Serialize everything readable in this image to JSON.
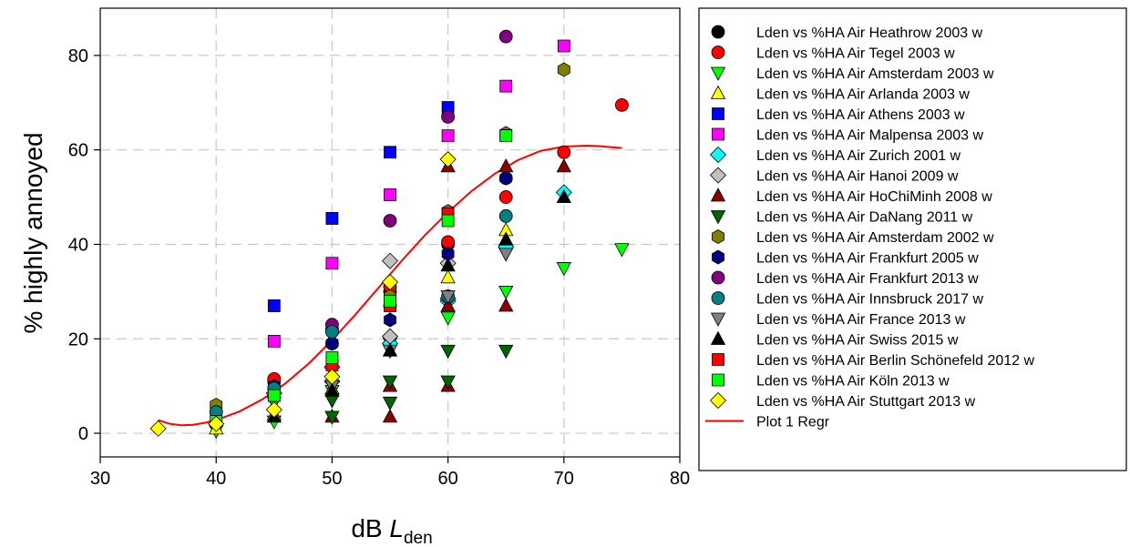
{
  "chart_data": {
    "type": "scatter",
    "ylabel": "% highly annoyed",
    "xlabel_prefix": "dB ",
    "xlabel_symbol": "L",
    "xlabel_subscript": "den",
    "xlim": [
      30,
      80
    ],
    "ylim": [
      -5,
      90
    ],
    "xticks": [
      30,
      40,
      50,
      60,
      70,
      80
    ],
    "yticks": [
      0,
      20,
      40,
      60,
      80
    ],
    "grid": true,
    "legend_position": "right, outside plot",
    "series": [
      {
        "name": "Lden vs %HA Air Heathrow 2003 w",
        "marker": "circle",
        "color": "#000000",
        "points": [
          [
            45,
            11
          ],
          [
            50,
            22
          ],
          [
            55,
            30
          ],
          [
            60,
            40
          ],
          [
            65,
            54
          ]
        ]
      },
      {
        "name": "Lden vs %HA Air Tegel 2003 w",
        "marker": "circle",
        "color": "#ff0000",
        "points": [
          [
            45,
            11.5
          ],
          [
            50,
            19
          ],
          [
            55,
            31
          ],
          [
            60,
            40.5
          ],
          [
            65,
            50
          ],
          [
            70,
            59.5
          ],
          [
            75,
            69.5
          ]
        ]
      },
      {
        "name": "Lden vs %HA Air Amsterdam 2003 w",
        "marker": "triangle-down",
        "color": "#00ff00",
        "points": [
          [
            40,
            0.5
          ],
          [
            45,
            2.5
          ],
          [
            50,
            9
          ],
          [
            55,
            19
          ],
          [
            60,
            24.5
          ],
          [
            65,
            30
          ],
          [
            70,
            35
          ],
          [
            75,
            39
          ]
        ]
      },
      {
        "name": "Lden vs %HA Air Arlanda 2003 w",
        "marker": "triangle-up",
        "color": "#ffff00",
        "points": [
          [
            40,
            1
          ],
          [
            45,
            4
          ],
          [
            50,
            9.5
          ],
          [
            55,
            20
          ],
          [
            60,
            33
          ],
          [
            65,
            43
          ]
        ]
      },
      {
        "name": "Lden vs %HA Air Athens 2003 w",
        "marker": "square",
        "color": "#0000ff",
        "points": [
          [
            45,
            27
          ],
          [
            50,
            45.5
          ],
          [
            55,
            59.5
          ],
          [
            60,
            69
          ]
        ]
      },
      {
        "name": "Lden vs %HA Air Malpensa 2003 w",
        "marker": "square",
        "color": "#ff00ff",
        "points": [
          [
            45,
            19.5
          ],
          [
            50,
            36
          ],
          [
            55,
            50.5
          ],
          [
            60,
            63
          ],
          [
            65,
            73.5
          ],
          [
            70,
            82
          ]
        ]
      },
      {
        "name": "Lden vs %HA Air Zurich 2001 w",
        "marker": "diamond",
        "color": "#00ffff",
        "points": [
          [
            45,
            8.5
          ],
          [
            50,
            14
          ],
          [
            55,
            19
          ],
          [
            60,
            28
          ],
          [
            65,
            39.5
          ],
          [
            70,
            51
          ]
        ]
      },
      {
        "name": "Lden vs %HA Air Hanoi 2009  w",
        "marker": "diamond",
        "color": "#c0c0c0",
        "points": [
          [
            50,
            11
          ],
          [
            55,
            20.5
          ],
          [
            55,
            36.5
          ],
          [
            60,
            28.5
          ],
          [
            60,
            36
          ]
        ]
      },
      {
        "name": "Lden vs %HA Air HoChiMinh 2008 w",
        "marker": "triangle-up",
        "color": "#8b0000",
        "points": [
          [
            50,
            3.5
          ],
          [
            55,
            3.5
          ],
          [
            55,
            10
          ],
          [
            60,
            10
          ],
          [
            60,
            27
          ],
          [
            60,
            56.5
          ],
          [
            65,
            27
          ],
          [
            65,
            56.5
          ],
          [
            70,
            56.5
          ]
        ]
      },
      {
        "name": "Lden vs %HA Air DaNang 2011 w",
        "marker": "triangle-down",
        "color": "#006400",
        "points": [
          [
            50,
            3.5
          ],
          [
            50,
            7
          ],
          [
            55,
            6.5
          ],
          [
            55,
            11
          ],
          [
            60,
            11
          ],
          [
            60,
            17.5
          ],
          [
            65,
            17.5
          ]
        ]
      },
      {
        "name": "Lden vs %HA Air Amsterdam 2002 w",
        "marker": "hexagon",
        "color": "#808000",
        "points": [
          [
            40,
            6
          ],
          [
            45,
            9
          ],
          [
            50,
            19
          ],
          [
            55,
            29
          ],
          [
            60,
            47
          ],
          [
            65,
            63.5
          ],
          [
            70,
            77
          ]
        ]
      },
      {
        "name": "Lden vs %HA Air Frankfurt 2005 w",
        "marker": "hexagon",
        "color": "#000080",
        "points": [
          [
            45,
            10
          ],
          [
            50,
            19
          ],
          [
            55,
            24
          ],
          [
            60,
            38
          ],
          [
            65,
            54
          ]
        ]
      },
      {
        "name": "Lden vs %HA Air Frankfurt 2013 w",
        "marker": "circle",
        "color": "#800080",
        "points": [
          [
            50,
            23
          ],
          [
            55,
            45
          ],
          [
            60,
            67
          ],
          [
            65,
            84
          ]
        ]
      },
      {
        "name": "Lden vs %HA Air Innsbruck 2017 w",
        "marker": "circle",
        "color": "#008080",
        "points": [
          [
            40,
            4.5
          ],
          [
            45,
            9.5
          ],
          [
            50,
            21.5
          ],
          [
            55,
            27
          ],
          [
            60,
            29
          ],
          [
            65,
            46
          ]
        ]
      },
      {
        "name": "Lden vs %HA Air France 2013 w",
        "marker": "triangle-down",
        "color": "#808080",
        "points": [
          [
            45,
            6.5
          ],
          [
            50,
            10
          ],
          [
            55,
            17.5
          ],
          [
            60,
            29
          ],
          [
            65,
            38
          ]
        ]
      },
      {
        "name": "Lden vs %HA Air Swiss 2015 w",
        "marker": "triangle-up",
        "color": "#000000",
        "points": [
          [
            45,
            3.5
          ],
          [
            50,
            9
          ],
          [
            55,
            17.5
          ],
          [
            60,
            35.5
          ],
          [
            65,
            41
          ],
          [
            70,
            50
          ]
        ]
      },
      {
        "name": "Lden vs %HA Air Berlin Schönefeld 2012 w",
        "marker": "square",
        "color": "#ff0000",
        "points": [
          [
            45,
            8
          ],
          [
            50,
            14.5
          ],
          [
            55,
            27
          ],
          [
            60,
            46.5
          ],
          [
            65,
            63
          ]
        ]
      },
      {
        "name": "Lden vs %HA Air Köln 2013 w",
        "marker": "square",
        "color": "#00ff00",
        "points": [
          [
            40,
            2.5
          ],
          [
            45,
            8
          ],
          [
            50,
            16
          ],
          [
            55,
            28
          ],
          [
            60,
            45
          ],
          [
            65,
            63
          ]
        ]
      },
      {
        "name": "Lden vs %HA Air Stuttgart 2013 w",
        "marker": "diamond",
        "color": "#ffff00",
        "points": [
          [
            35,
            1
          ],
          [
            40,
            2
          ],
          [
            45,
            5
          ],
          [
            50,
            12
          ],
          [
            55,
            32
          ],
          [
            60,
            58
          ]
        ]
      }
    ],
    "regression": {
      "name": "Plot 1 Regr",
      "color": "#ff0000",
      "x": [
        35,
        36,
        37,
        38,
        39,
        40,
        42,
        44,
        46,
        48,
        50,
        52,
        54,
        56,
        58,
        60,
        62,
        64,
        66,
        68,
        70,
        72,
        73,
        74,
        75
      ],
      "y": [
        2.8,
        2.0,
        1.7,
        1.8,
        2.2,
        2.8,
        4.6,
        7.2,
        10.6,
        14.8,
        19.7,
        25.1,
        30.8,
        36.5,
        41.9,
        46.8,
        51.2,
        54.9,
        57.8,
        59.8,
        60.7,
        60.9,
        60.8,
        60.6,
        60.4
      ]
    }
  }
}
